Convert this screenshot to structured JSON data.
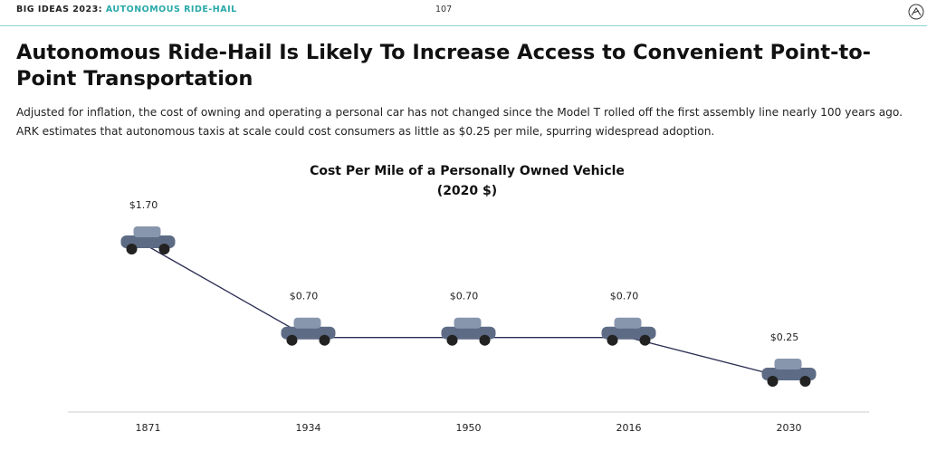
{
  "header": {
    "section": "BIG IDEAS 2023:",
    "topic": "AUTONOMOUS RIDE-HAIL",
    "page": "107"
  },
  "headline": "Autonomous Ride-Hail Is Likely To Increase Access to Convenient Point-to-Point Transportation",
  "body": "Adjusted for inflation, the cost of owning and operating a personal car has not changed since the Model T rolled off the first assembly line nearly 100 years ago. ARK estimates that autonomous taxis at scale could cost consumers as little as $0.25 per mile, spurring widespread adoption.",
  "chart_data": {
    "type": "line",
    "title": "Cost Per Mile of a Personally Owned Vehicle",
    "subtitle": "(2020 $)",
    "categories": [
      "1871",
      "1934",
      "1950",
      "2016",
      "2030"
    ],
    "values": [
      1.7,
      0.7,
      0.7,
      0.7,
      0.25
    ],
    "value_labels": [
      "$1.70",
      "$0.70",
      "$0.70",
      "$0.70",
      "$0.25"
    ],
    "color": "#2b2d52"
  }
}
